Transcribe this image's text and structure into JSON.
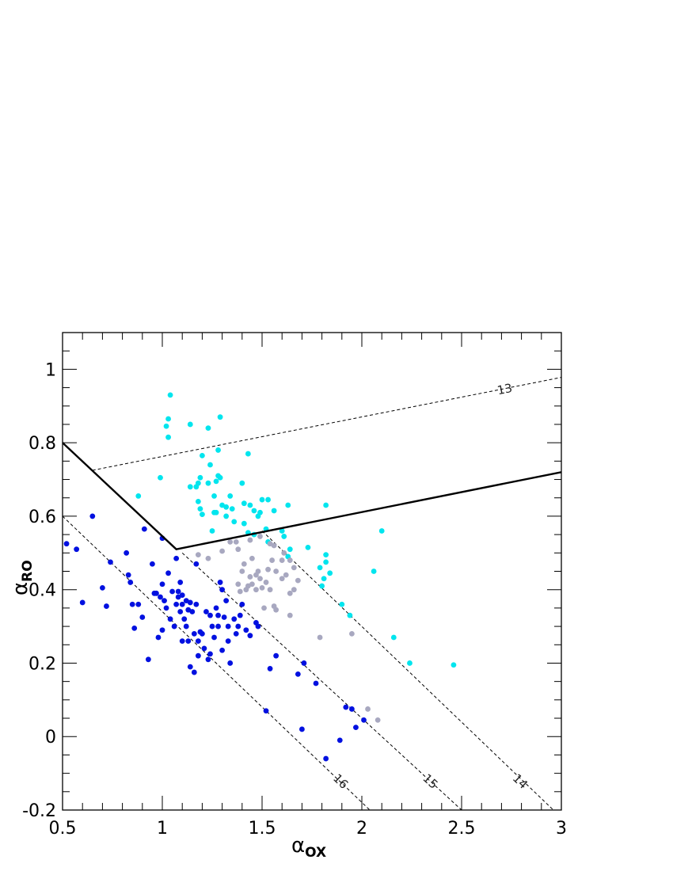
{
  "chart_data": {
    "type": "scatter",
    "xlabel": {
      "base": "α",
      "sub": "OX"
    },
    "ylabel": {
      "base": "α",
      "sub": "RO"
    },
    "xlim": [
      0.5,
      3.0
    ],
    "ylim": [
      -0.2,
      1.1
    ],
    "x_ticks": [
      {
        "v": 0.5,
        "label": "0.5"
      },
      {
        "v": 1,
        "label": "1"
      },
      {
        "v": 1.5,
        "label": "1.5"
      },
      {
        "v": 2,
        "label": "2"
      },
      {
        "v": 2.5,
        "label": "2.5"
      },
      {
        "v": 3,
        "label": "3"
      }
    ],
    "y_ticks": [
      {
        "v": -0.2,
        "label": "-0.2"
      },
      {
        "v": 0,
        "label": "0"
      },
      {
        "v": 0.2,
        "label": "0.2"
      },
      {
        "v": 0.4,
        "label": "0.4"
      },
      {
        "v": 0.6,
        "label": "0.6"
      },
      {
        "v": 0.8,
        "label": "0.8"
      },
      {
        "v": 1,
        "label": "1"
      }
    ],
    "grid": false,
    "colors": {
      "cyan": "#00e5ee",
      "blue": "#0010e0",
      "gray": "#a8a8c0",
      "line": "#000000"
    },
    "boundary_lines": [
      {
        "points": [
          [
            0.5,
            0.8
          ],
          [
            1.07,
            0.51
          ],
          [
            3.0,
            0.72
          ]
        ]
      }
    ],
    "dashed_lines": [
      {
        "label": "13",
        "x1": 0.65,
        "y1": 0.725,
        "x2": 3.0,
        "y2": 0.978,
        "label_at": [
          2.72,
          0.935
        ]
      },
      {
        "label": "14",
        "x1": 1.5,
        "y1": 0.56,
        "x2": 2.96,
        "y2": -0.2,
        "label_at": [
          2.78,
          -0.13
        ]
      },
      {
        "label": "15",
        "x1": 1.1,
        "y1": 0.5,
        "x2": 2.5,
        "y2": -0.2,
        "label_at": [
          2.33,
          -0.13
        ]
      },
      {
        "label": "16",
        "x1": 0.5,
        "y1": 0.6,
        "x2": 2.04,
        "y2": -0.2,
        "label_at": [
          1.88,
          -0.13
        ]
      }
    ],
    "series": [
      {
        "color_key": "cyan",
        "points": [
          [
            1.04,
            0.93
          ],
          [
            1.03,
            0.865
          ],
          [
            1.02,
            0.845
          ],
          [
            1.03,
            0.815
          ],
          [
            1.14,
            0.85
          ],
          [
            1.23,
            0.84
          ],
          [
            1.29,
            0.87
          ],
          [
            1.28,
            0.78
          ],
          [
            1.2,
            0.765
          ],
          [
            1.24,
            0.74
          ],
          [
            1.28,
            0.71
          ],
          [
            1.29,
            0.705
          ],
          [
            1.43,
            0.77
          ],
          [
            0.99,
            0.705
          ],
          [
            1.19,
            0.705
          ],
          [
            1.14,
            0.68
          ],
          [
            1.17,
            0.68
          ],
          [
            1.18,
            0.69
          ],
          [
            1.23,
            0.69
          ],
          [
            1.27,
            0.695
          ],
          [
            1.4,
            0.69
          ],
          [
            0.88,
            0.655
          ],
          [
            1.18,
            0.64
          ],
          [
            1.26,
            0.655
          ],
          [
            1.3,
            0.63
          ],
          [
            1.32,
            0.625
          ],
          [
            1.34,
            0.655
          ],
          [
            1.26,
            0.61
          ],
          [
            1.19,
            0.62
          ],
          [
            1.2,
            0.605
          ],
          [
            1.27,
            0.61
          ],
          [
            1.35,
            0.62
          ],
          [
            1.41,
            0.635
          ],
          [
            1.44,
            0.63
          ],
          [
            1.46,
            0.615
          ],
          [
            1.5,
            0.645
          ],
          [
            1.53,
            0.645
          ],
          [
            1.49,
            0.61
          ],
          [
            1.56,
            0.615
          ],
          [
            1.63,
            0.63
          ],
          [
            1.82,
            0.63
          ],
          [
            1.48,
            0.6
          ],
          [
            1.32,
            0.6
          ],
          [
            1.36,
            0.585
          ],
          [
            1.41,
            0.58
          ],
          [
            1.25,
            0.56
          ],
          [
            1.52,
            0.565
          ],
          [
            1.6,
            0.56
          ],
          [
            1.61,
            0.545
          ],
          [
            1.46,
            0.55
          ],
          [
            1.43,
            0.555
          ],
          [
            2.1,
            0.56
          ],
          [
            1.53,
            0.53
          ],
          [
            1.64,
            0.51
          ],
          [
            1.73,
            0.515
          ],
          [
            1.63,
            0.49
          ],
          [
            1.82,
            0.495
          ],
          [
            1.79,
            0.46
          ],
          [
            1.82,
            0.475
          ],
          [
            1.84,
            0.445
          ],
          [
            1.81,
            0.43
          ],
          [
            1.8,
            0.41
          ],
          [
            2.06,
            0.45
          ],
          [
            1.9,
            0.36
          ],
          [
            1.94,
            0.33
          ],
          [
            2.16,
            0.27
          ],
          [
            2.24,
            0.2
          ],
          [
            2.46,
            0.195
          ]
        ]
      },
      {
        "color_key": "gray",
        "points": [
          [
            1.18,
            0.495
          ],
          [
            1.23,
            0.485
          ],
          [
            1.3,
            0.505
          ],
          [
            1.34,
            0.53
          ],
          [
            1.37,
            0.53
          ],
          [
            1.38,
            0.51
          ],
          [
            1.44,
            0.535
          ],
          [
            1.49,
            0.545
          ],
          [
            1.54,
            0.525
          ],
          [
            1.56,
            0.52
          ],
          [
            1.61,
            0.5
          ],
          [
            1.6,
            0.48
          ],
          [
            1.55,
            0.48
          ],
          [
            1.64,
            0.48
          ],
          [
            1.66,
            0.46
          ],
          [
            1.41,
            0.47
          ],
          [
            1.45,
            0.485
          ],
          [
            1.48,
            0.45
          ],
          [
            1.47,
            0.44
          ],
          [
            1.53,
            0.455
          ],
          [
            1.57,
            0.45
          ],
          [
            1.4,
            0.45
          ],
          [
            1.44,
            0.435
          ],
          [
            1.45,
            0.415
          ],
          [
            1.43,
            0.41
          ],
          [
            1.49,
            0.43
          ],
          [
            1.52,
            0.42
          ],
          [
            1.6,
            0.43
          ],
          [
            1.62,
            0.44
          ],
          [
            1.68,
            0.425
          ],
          [
            1.38,
            0.415
          ],
          [
            1.42,
            0.4
          ],
          [
            1.47,
            0.4
          ],
          [
            1.5,
            0.405
          ],
          [
            1.54,
            0.4
          ],
          [
            1.39,
            0.395
          ],
          [
            1.64,
            0.39
          ],
          [
            1.66,
            0.4
          ],
          [
            1.56,
            0.355
          ],
          [
            1.51,
            0.35
          ],
          [
            1.57,
            0.345
          ],
          [
            1.64,
            0.33
          ],
          [
            1.95,
            0.28
          ],
          [
            1.79,
            0.27
          ],
          [
            2.03,
            0.075
          ],
          [
            2.08,
            0.045
          ]
        ]
      },
      {
        "color_key": "blue",
        "points": [
          [
            0.65,
            0.6
          ],
          [
            0.52,
            0.525
          ],
          [
            0.57,
            0.51
          ],
          [
            0.6,
            0.365
          ],
          [
            0.7,
            0.405
          ],
          [
            0.72,
            0.355
          ],
          [
            0.74,
            0.475
          ],
          [
            0.82,
            0.5
          ],
          [
            0.83,
            0.44
          ],
          [
            0.84,
            0.42
          ],
          [
            0.85,
            0.36
          ],
          [
            0.86,
            0.295
          ],
          [
            0.88,
            0.36
          ],
          [
            0.9,
            0.325
          ],
          [
            0.91,
            0.565
          ],
          [
            0.93,
            0.21
          ],
          [
            0.95,
            0.47
          ],
          [
            0.97,
            0.39
          ],
          [
            0.99,
            0.38
          ],
          [
            1.0,
            0.54
          ],
          [
            1.0,
            0.415
          ],
          [
            0.98,
            0.27
          ],
          [
            1.0,
            0.29
          ],
          [
            1.01,
            0.37
          ],
          [
            1.02,
            0.35
          ],
          [
            1.03,
            0.445
          ],
          [
            1.04,
            0.32
          ],
          [
            1.05,
            0.395
          ],
          [
            1.06,
            0.3
          ],
          [
            1.07,
            0.36
          ],
          [
            1.08,
            0.395
          ],
          [
            1.07,
            0.485
          ],
          [
            1.09,
            0.42
          ],
          [
            1.1,
            0.385
          ],
          [
            1.09,
            0.34
          ],
          [
            1.1,
            0.26
          ],
          [
            1.11,
            0.32
          ],
          [
            1.12,
            0.37
          ],
          [
            1.12,
            0.3
          ],
          [
            1.13,
            0.26
          ],
          [
            1.14,
            0.19
          ],
          [
            1.14,
            0.365
          ],
          [
            1.15,
            0.34
          ],
          [
            1.16,
            0.28
          ],
          [
            1.16,
            0.175
          ],
          [
            1.17,
            0.47
          ],
          [
            1.17,
            0.36
          ],
          [
            1.18,
            0.26
          ],
          [
            1.18,
            0.22
          ],
          [
            1.19,
            0.285
          ],
          [
            1.2,
            0.28
          ],
          [
            1.21,
            0.24
          ],
          [
            1.22,
            0.34
          ],
          [
            1.23,
            0.21
          ],
          [
            1.24,
            0.33
          ],
          [
            1.24,
            0.225
          ],
          [
            1.25,
            0.3
          ],
          [
            1.26,
            0.27
          ],
          [
            1.27,
            0.35
          ],
          [
            1.28,
            0.33
          ],
          [
            1.28,
            0.3
          ],
          [
            1.29,
            0.42
          ],
          [
            1.3,
            0.4
          ],
          [
            1.3,
            0.235
          ],
          [
            1.31,
            0.325
          ],
          [
            1.32,
            0.37
          ],
          [
            1.33,
            0.3
          ],
          [
            1.33,
            0.26
          ],
          [
            1.34,
            0.2
          ],
          [
            1.36,
            0.32
          ],
          [
            1.37,
            0.28
          ],
          [
            1.38,
            0.3
          ],
          [
            1.39,
            0.33
          ],
          [
            1.4,
            0.36
          ],
          [
            1.42,
            0.29
          ],
          [
            1.44,
            0.275
          ],
          [
            1.47,
            0.31
          ],
          [
            1.48,
            0.3
          ],
          [
            1.52,
            0.07
          ],
          [
            1.54,
            0.185
          ],
          [
            1.57,
            0.22
          ],
          [
            1.68,
            0.17
          ],
          [
            1.7,
            0.02
          ],
          [
            1.71,
            0.2
          ],
          [
            1.77,
            0.145
          ],
          [
            1.82,
            -0.06
          ],
          [
            1.89,
            -0.01
          ],
          [
            1.92,
            0.08
          ],
          [
            1.95,
            0.075
          ],
          [
            1.97,
            0.025
          ],
          [
            2.01,
            0.045
          ],
          [
            1.1,
            0.36
          ],
          [
            1.08,
            0.38
          ],
          [
            1.13,
            0.345
          ],
          [
            0.96,
            0.39
          ]
        ]
      }
    ]
  }
}
